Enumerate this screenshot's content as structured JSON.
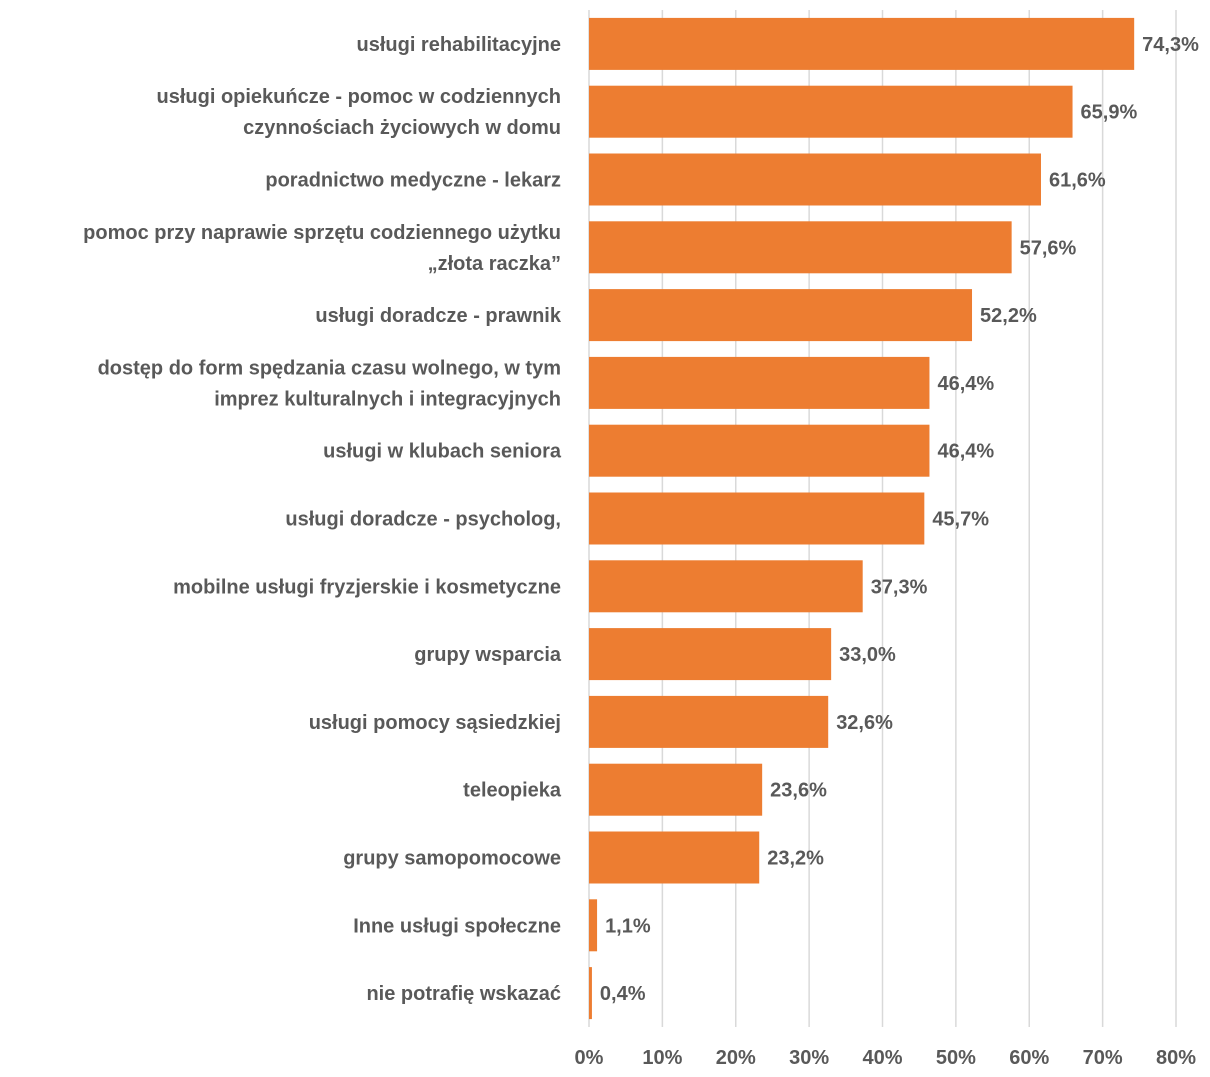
{
  "chart_data": {
    "type": "bar",
    "orientation": "horizontal",
    "categories": [
      [
        "usługi rehabilitacyjne"
      ],
      [
        "usługi opiekuńcze - pomoc w codziennych",
        "czynnościach życiowych w domu"
      ],
      [
        "poradnictwo medyczne - lekarz"
      ],
      [
        "pomoc przy naprawie sprzętu codziennego użytku",
        "„złota raczka”"
      ],
      [
        "usługi doradcze - prawnik"
      ],
      [
        "dostęp do form spędzania czasu wolnego, w tym",
        "imprez kulturalnych i integracyjnych"
      ],
      [
        "usługi w klubach seniora"
      ],
      [
        "usługi doradcze - psycholog,"
      ],
      [
        "mobilne usługi fryzjerskie i kosmetyczne"
      ],
      [
        "grupy wsparcia"
      ],
      [
        "usługi pomocy sąsiedzkiej"
      ],
      [
        "teleopieka"
      ],
      [
        "grupy samopomocowe"
      ],
      [
        "Inne usługi społeczne"
      ],
      [
        "nie potrafię wskazać"
      ]
    ],
    "values": [
      74.3,
      65.9,
      61.6,
      57.6,
      52.2,
      46.4,
      46.4,
      45.7,
      37.3,
      33.0,
      32.6,
      23.6,
      23.2,
      1.1,
      0.4
    ],
    "value_labels": [
      "74,3%",
      "65,9%",
      "61,6%",
      "57,6%",
      "52,2%",
      "46,4%",
      "46,4%",
      "45,7%",
      "37,3%",
      "33,0%",
      "32,6%",
      "23,6%",
      "23,2%",
      "1,1%",
      "0,4%"
    ],
    "xlim": [
      0,
      80
    ],
    "x_ticks": [
      0,
      10,
      20,
      30,
      40,
      50,
      60,
      70,
      80
    ],
    "x_tick_labels": [
      "0%",
      "10%",
      "20%",
      "30%",
      "40%",
      "50%",
      "60%",
      "70%",
      "80%"
    ],
    "grid": true,
    "bar_color": "#ED7D31",
    "grid_color": "#D9D9D9",
    "text_color": "#595959"
  }
}
